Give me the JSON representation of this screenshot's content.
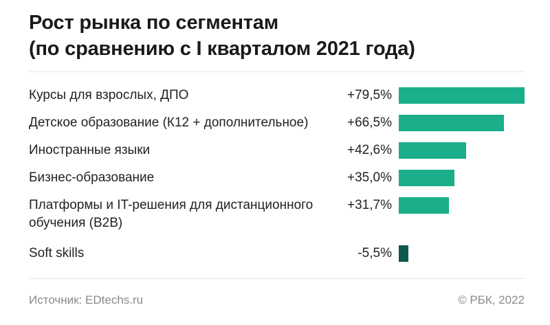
{
  "chart_data": {
    "type": "bar",
    "orientation": "horizontal",
    "title": "Рост рынка по сегментам",
    "subtitle": "(по сравнению с I кварталом 2021 года)",
    "categories": [
      "Курсы для взрослых, ДПО",
      "Детское образование (К12 + дополнительное)",
      "Иностранные языки",
      "Бизнес-образование",
      "Платформы и IT-решения для дистанционного обучения (B2B)",
      "Soft skills"
    ],
    "values": [
      79.5,
      66.5,
      42.6,
      35.0,
      31.7,
      -5.5
    ],
    "value_labels": [
      "+79,5%",
      "+66,5%",
      "+42,6%",
      "+35,0%",
      "+31,7%",
      "-5,5%"
    ],
    "unit": "%",
    "colors": {
      "positive": "#1aae8a",
      "negative": "#0f5a4c"
    },
    "grid": false
  },
  "footer": {
    "source": "Источник: EDtechs.ru",
    "copyright": "© РБК, 2022"
  }
}
